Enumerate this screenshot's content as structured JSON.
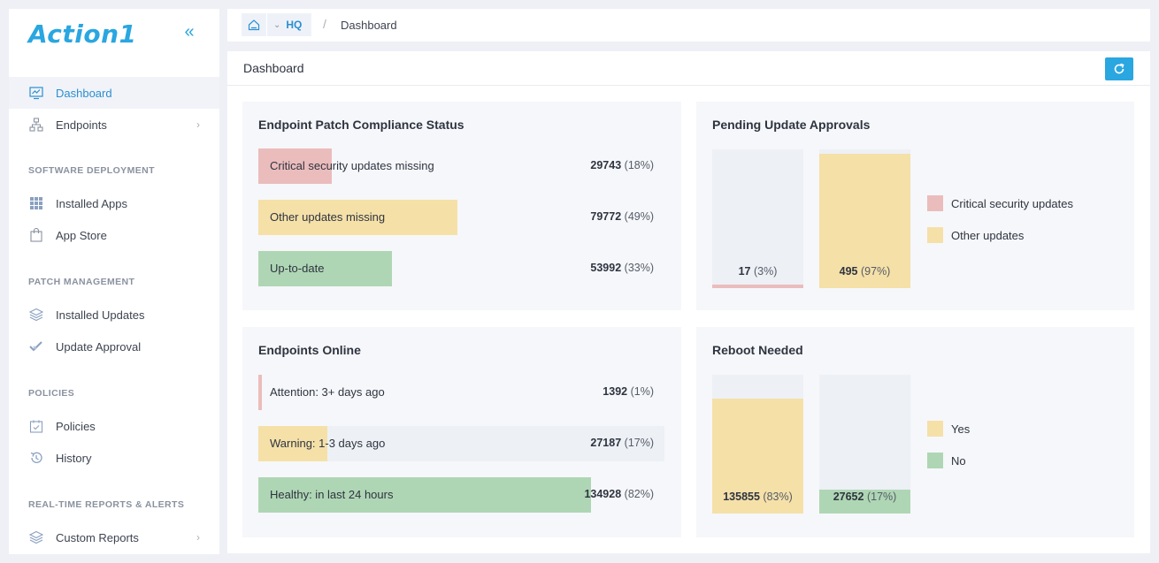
{
  "app": {
    "logo_text": "Action1",
    "brand_color": "#2aa6e0"
  },
  "sidebar": {
    "items": [
      {
        "label": "Dashboard",
        "icon": "monitor-chart-icon",
        "active": true
      },
      {
        "label": "Endpoints",
        "icon": "network-icon",
        "has_children": true
      }
    ],
    "sections": [
      {
        "title": "SOFTWARE DEPLOYMENT",
        "items": [
          {
            "label": "Installed Apps",
            "icon": "grid-icon"
          },
          {
            "label": "App Store",
            "icon": "shopping-bag-icon"
          }
        ]
      },
      {
        "title": "PATCH MANAGEMENT",
        "items": [
          {
            "label": "Installed Updates",
            "icon": "layers-icon"
          },
          {
            "label": "Update Approval",
            "icon": "double-check-icon"
          }
        ]
      },
      {
        "title": "POLICIES",
        "items": [
          {
            "label": "Policies",
            "icon": "calendar-check-icon"
          },
          {
            "label": "History",
            "icon": "history-icon"
          }
        ]
      },
      {
        "title": "REAL-TIME REPORTS & ALERTS",
        "items": [
          {
            "label": "Custom Reports",
            "icon": "layers-icon",
            "has_children": true
          }
        ]
      }
    ]
  },
  "breadcrumb": {
    "org": "HQ",
    "separator": "/",
    "current": "Dashboard"
  },
  "page": {
    "title": "Dashboard"
  },
  "colors": {
    "critical": "#ebbcbc",
    "other": "#f5e0a8",
    "ok": "#afd6b4",
    "track": "#edf0f5"
  },
  "cards": {
    "compliance": {
      "title": "Endpoint Patch Compliance Status",
      "rows": [
        {
          "label": "Critical security updates missing",
          "count": "29743",
          "pct": "(18%)",
          "fraction": 0.18,
          "color": "critical"
        },
        {
          "label": "Other updates missing",
          "count": "79772",
          "pct": "(49%)",
          "fraction": 0.49,
          "color": "other"
        },
        {
          "label": "Up-to-date",
          "count": "53992",
          "pct": "(33%)",
          "fraction": 0.33,
          "color": "ok"
        }
      ]
    },
    "pending": {
      "title": "Pending Update Approvals",
      "bars": [
        {
          "count": "17",
          "pct": "(3%)",
          "fraction": 0.03,
          "color": "critical"
        },
        {
          "count": "495",
          "pct": "(97%)",
          "fraction": 0.97,
          "color": "other"
        }
      ],
      "legend": [
        {
          "label": "Critical security updates",
          "color": "critical"
        },
        {
          "label": "Other updates",
          "color": "other"
        }
      ]
    },
    "online": {
      "title": "Endpoints Online",
      "rows": [
        {
          "label": "Attention: 3+ days ago",
          "count": "1392",
          "pct": "(1%)",
          "fraction": 0.01,
          "color": "critical"
        },
        {
          "label": "Warning: 1-3 days ago",
          "count": "27187",
          "pct": "(17%)",
          "fraction": 0.17,
          "color": "other"
        },
        {
          "label": "Healthy: in last 24 hours",
          "count": "134928",
          "pct": "(82%)",
          "fraction": 0.82,
          "color": "ok"
        }
      ]
    },
    "reboot": {
      "title": "Reboot Needed",
      "bars": [
        {
          "count": "135855",
          "pct": "(83%)",
          "fraction": 0.83,
          "color": "other"
        },
        {
          "count": "27652",
          "pct": "(17%)",
          "fraction": 0.17,
          "color": "ok"
        }
      ],
      "legend": [
        {
          "label": "Yes",
          "color": "other"
        },
        {
          "label": "No",
          "color": "ok"
        }
      ]
    }
  }
}
